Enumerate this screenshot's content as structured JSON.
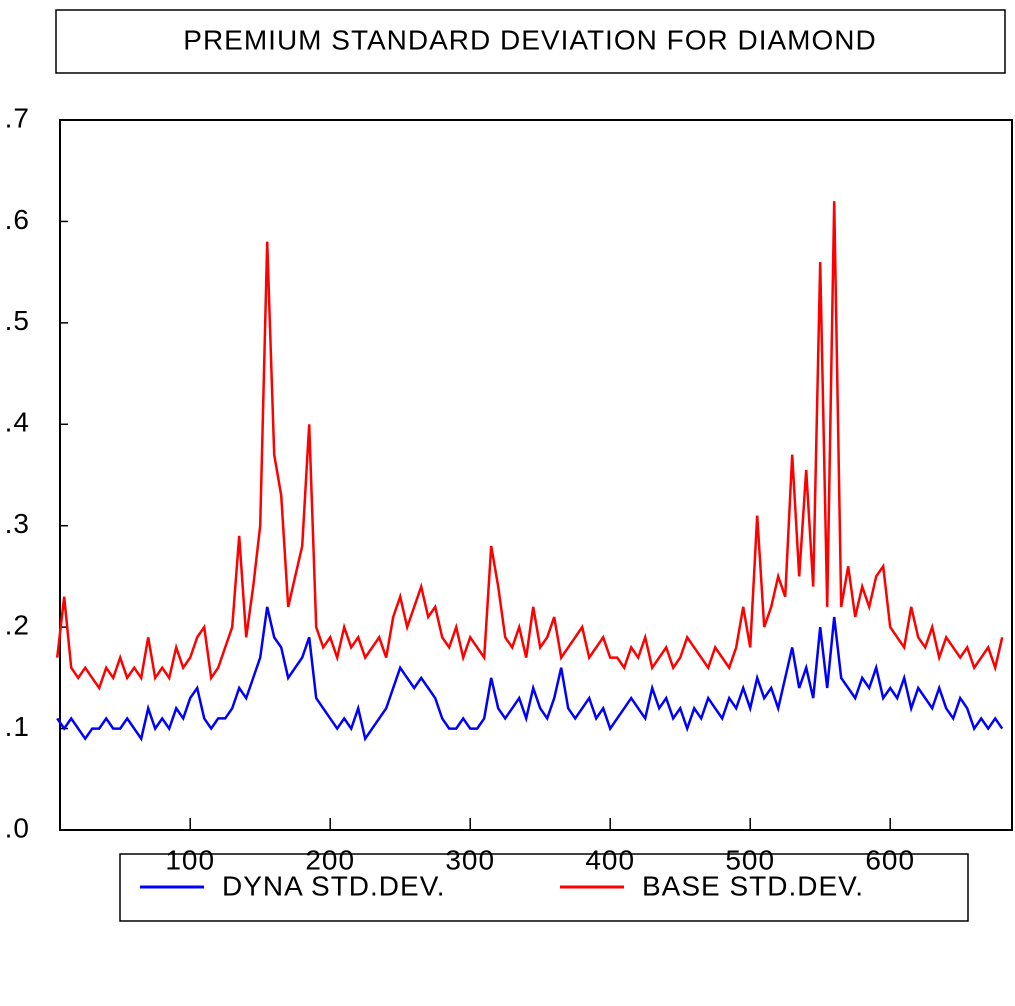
{
  "chart_data": {
    "type": "line",
    "title": "PREMIUM STANDARD DEVIATION FOR DIAMOND",
    "x": [
      5,
      10,
      15,
      20,
      25,
      30,
      35,
      40,
      45,
      50,
      55,
      60,
      65,
      70,
      75,
      80,
      85,
      90,
      95,
      100,
      105,
      110,
      115,
      120,
      125,
      130,
      135,
      140,
      145,
      150,
      155,
      160,
      165,
      170,
      175,
      180,
      185,
      190,
      195,
      200,
      205,
      210,
      215,
      220,
      225,
      230,
      235,
      240,
      245,
      250,
      255,
      260,
      265,
      270,
      275,
      280,
      285,
      290,
      295,
      300,
      305,
      310,
      315,
      320,
      325,
      330,
      335,
      340,
      345,
      350,
      355,
      360,
      365,
      370,
      375,
      380,
      385,
      390,
      395,
      400,
      405,
      410,
      415,
      420,
      425,
      430,
      435,
      440,
      445,
      450,
      455,
      460,
      465,
      470,
      475,
      480,
      485,
      490,
      495,
      500,
      505,
      510,
      515,
      520,
      525,
      530,
      535,
      540,
      545,
      550,
      555,
      560,
      565,
      570,
      575,
      580,
      585,
      590,
      595,
      600,
      605,
      610,
      615,
      620,
      625,
      630,
      635,
      640,
      645,
      650,
      655,
      660,
      665,
      670,
      675,
      680
    ],
    "series": [
      {
        "name": "DYNA STD.DEV.",
        "color": "#0000ff",
        "values": [
          0.11,
          0.1,
          0.11,
          0.1,
          0.09,
          0.1,
          0.1,
          0.11,
          0.1,
          0.1,
          0.11,
          0.1,
          0.09,
          0.12,
          0.1,
          0.11,
          0.1,
          0.12,
          0.11,
          0.13,
          0.14,
          0.11,
          0.1,
          0.11,
          0.11,
          0.12,
          0.14,
          0.13,
          0.15,
          0.17,
          0.22,
          0.19,
          0.18,
          0.15,
          0.16,
          0.17,
          0.19,
          0.13,
          0.12,
          0.11,
          0.1,
          0.11,
          0.1,
          0.12,
          0.09,
          0.1,
          0.11,
          0.12,
          0.14,
          0.16,
          0.15,
          0.14,
          0.15,
          0.14,
          0.13,
          0.11,
          0.1,
          0.1,
          0.11,
          0.1,
          0.1,
          0.11,
          0.15,
          0.12,
          0.11,
          0.12,
          0.13,
          0.11,
          0.14,
          0.12,
          0.11,
          0.13,
          0.16,
          0.12,
          0.11,
          0.12,
          0.13,
          0.11,
          0.12,
          0.1,
          0.11,
          0.12,
          0.13,
          0.12,
          0.11,
          0.14,
          0.12,
          0.13,
          0.11,
          0.12,
          0.1,
          0.12,
          0.11,
          0.13,
          0.12,
          0.11,
          0.13,
          0.12,
          0.14,
          0.12,
          0.15,
          0.13,
          0.14,
          0.12,
          0.15,
          0.18,
          0.14,
          0.16,
          0.13,
          0.2,
          0.14,
          0.21,
          0.15,
          0.14,
          0.13,
          0.15,
          0.14,
          0.16,
          0.13,
          0.14,
          0.13,
          0.15,
          0.12,
          0.14,
          0.13,
          0.12,
          0.14,
          0.12,
          0.11,
          0.13,
          0.12,
          0.1,
          0.11,
          0.1,
          0.11,
          0.1
        ]
      },
      {
        "name": "BASE STD.DEV.",
        "color": "#ff0000",
        "values": [
          0.17,
          0.23,
          0.16,
          0.15,
          0.16,
          0.15,
          0.14,
          0.16,
          0.15,
          0.17,
          0.15,
          0.16,
          0.15,
          0.19,
          0.15,
          0.16,
          0.15,
          0.18,
          0.16,
          0.17,
          0.19,
          0.2,
          0.15,
          0.16,
          0.18,
          0.2,
          0.29,
          0.19,
          0.24,
          0.3,
          0.58,
          0.37,
          0.33,
          0.22,
          0.25,
          0.28,
          0.4,
          0.2,
          0.18,
          0.19,
          0.17,
          0.2,
          0.18,
          0.19,
          0.17,
          0.18,
          0.19,
          0.17,
          0.21,
          0.23,
          0.2,
          0.22,
          0.24,
          0.21,
          0.22,
          0.19,
          0.18,
          0.2,
          0.17,
          0.19,
          0.18,
          0.17,
          0.28,
          0.24,
          0.19,
          0.18,
          0.2,
          0.17,
          0.22,
          0.18,
          0.19,
          0.21,
          0.17,
          0.18,
          0.19,
          0.2,
          0.17,
          0.18,
          0.19,
          0.17,
          0.17,
          0.16,
          0.18,
          0.17,
          0.19,
          0.16,
          0.17,
          0.18,
          0.16,
          0.17,
          0.19,
          0.18,
          0.17,
          0.16,
          0.18,
          0.17,
          0.16,
          0.18,
          0.22,
          0.18,
          0.31,
          0.2,
          0.22,
          0.25,
          0.23,
          0.37,
          0.25,
          0.355,
          0.24,
          0.56,
          0.22,
          0.62,
          0.22,
          0.26,
          0.21,
          0.24,
          0.22,
          0.25,
          0.26,
          0.2,
          0.19,
          0.18,
          0.22,
          0.19,
          0.18,
          0.2,
          0.17,
          0.19,
          0.18,
          0.17,
          0.18,
          0.16,
          0.17,
          0.18,
          0.16,
          0.19
        ]
      }
    ],
    "xlim": [
      7,
      687
    ],
    "xticks": [
      100,
      200,
      300,
      400,
      500,
      600
    ],
    "ylim": [
      0,
      0.7
    ],
    "yticks": [
      {
        "value": 0,
        "label": ".0"
      },
      {
        "value": 0.1,
        "label": ".1"
      },
      {
        "value": 0.2,
        "label": ".2"
      },
      {
        "value": 0.3,
        "label": ".3"
      },
      {
        "value": 0.4,
        "label": ".4"
      },
      {
        "value": 0.5,
        "label": ".5"
      },
      {
        "value": 0.6,
        "label": ".6"
      },
      {
        "value": 0.7,
        "label": ".7"
      }
    ]
  }
}
